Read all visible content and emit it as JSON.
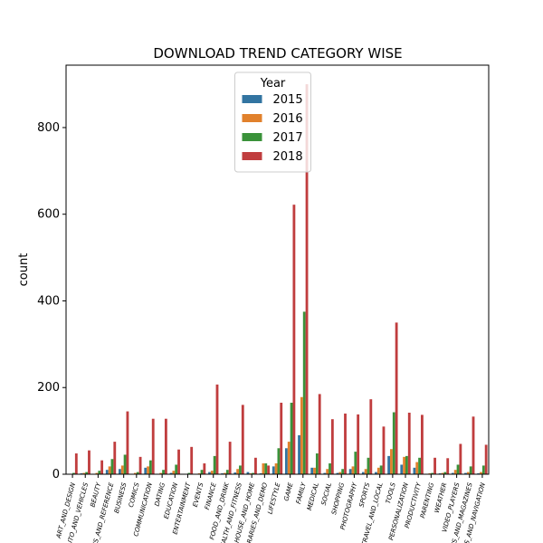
{
  "chart_data": {
    "type": "bar",
    "title": "DOWNLOAD TREND CATEGORY WISE",
    "y_label": "count",
    "categories": [
      "ART_AND_DESIGN",
      "AUTO_AND_VEHICLES",
      "BEAUTY",
      "BOOKS_AND_REFERENCE",
      "BUSINESS",
      "COMICS",
      "COMMUNICATION",
      "DATING",
      "EDUCATION",
      "ENTERTAINMENT",
      "EVENTS",
      "FINANCE",
      "FOOD_AND_DRINK",
      "HEALTH_AND_FITNESS",
      "HOUSE_AND_HOME",
      "LIBRARIES_AND_DEMO",
      "LIFESTYLE",
      "GAME",
      "FAMILY",
      "MEDICAL",
      "SOCIAL",
      "SHOPPING",
      "PHOTOGRAPHY",
      "SPORTS",
      "TRAVEL_AND_LOCAL",
      "TOOLS",
      "PERSONALIZATION",
      "PRODUCTIVITY",
      "PARENTING",
      "WEATHER",
      "VIDEO_PLAYERS",
      "NEWS_AND_MAGAZINES",
      "MAPS_AND_NAVIGATION"
    ],
    "legend_title": "Year",
    "legend": "upper center",
    "series": [
      {
        "name": "2015",
        "color": "#3274a1",
        "values": [
          0,
          2,
          1,
          10,
          12,
          1,
          15,
          1,
          3,
          0,
          0,
          5,
          2,
          4,
          5,
          2,
          18,
          60,
          90,
          15,
          3,
          3,
          12,
          5,
          5,
          42,
          22,
          15,
          1,
          2,
          3,
          3,
          2
        ]
      },
      {
        "name": "2016",
        "color": "#e1812c",
        "values": [
          1,
          3,
          3,
          18,
          20,
          3,
          18,
          3,
          8,
          0,
          2,
          8,
          3,
          12,
          2,
          25,
          25,
          75,
          178,
          15,
          12,
          5,
          18,
          12,
          15,
          58,
          40,
          28,
          2,
          3,
          10,
          5,
          5
        ]
      },
      {
        "name": "2017",
        "color": "#3a923a",
        "values": [
          3,
          5,
          8,
          35,
          45,
          5,
          32,
          10,
          22,
          3,
          10,
          42,
          10,
          20,
          3,
          25,
          60,
          165,
          375,
          48,
          25,
          12,
          52,
          38,
          20,
          143,
          42,
          38,
          3,
          5,
          22,
          18,
          20
        ]
      },
      {
        "name": "2018",
        "color": "#c03d3e",
        "values": [
          48,
          55,
          32,
          75,
          145,
          40,
          128,
          128,
          57,
          63,
          25,
          207,
          75,
          160,
          38,
          20,
          165,
          622,
          900,
          185,
          127,
          140,
          138,
          173,
          110,
          350,
          142,
          137,
          38,
          37,
          70,
          133,
          68
        ]
      }
    ],
    "ylim": [
      0,
      944
    ],
    "yticks": [
      0,
      200,
      400,
      600,
      800
    ]
  }
}
